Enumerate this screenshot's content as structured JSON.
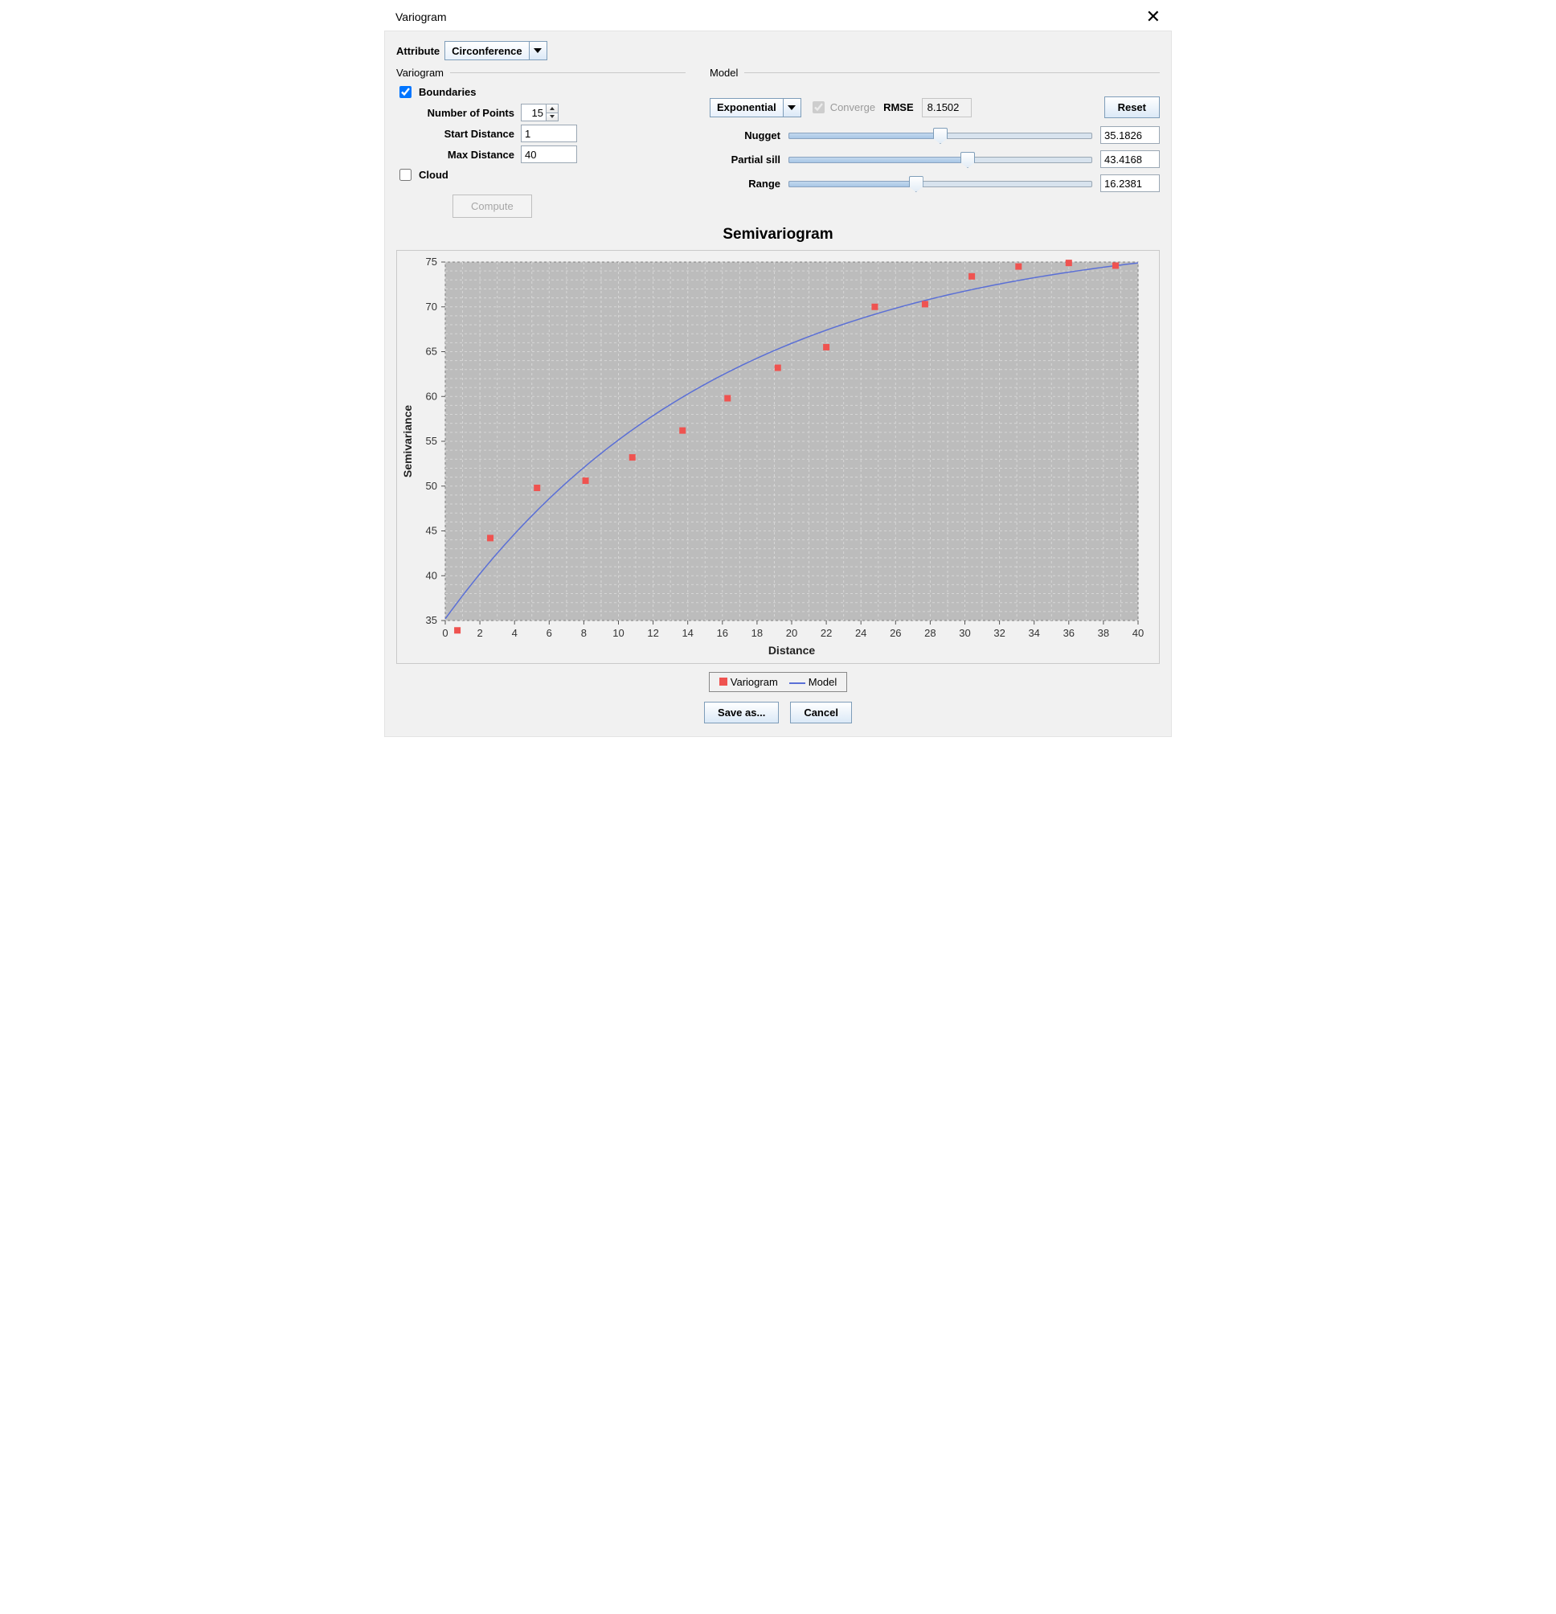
{
  "window": {
    "title": "Variogram"
  },
  "attribute": {
    "label": "Attribute",
    "value": "Circonference"
  },
  "variogram_panel": {
    "title": "Variogram",
    "boundaries": {
      "label": "Boundaries",
      "checked": true
    },
    "number_of_points": {
      "label": "Number of Points",
      "value": "15"
    },
    "start_distance": {
      "label": "Start Distance",
      "value": "1"
    },
    "max_distance": {
      "label": "Max Distance",
      "value": "40"
    },
    "cloud": {
      "label": "Cloud",
      "checked": false
    },
    "compute_label": "Compute"
  },
  "model_panel": {
    "title": "Model",
    "type": {
      "value": "Exponential"
    },
    "converge": {
      "label": "Converge",
      "checked": true
    },
    "rmse": {
      "label": "RMSE",
      "value": "8.1502"
    },
    "reset_label": "Reset",
    "nugget": {
      "label": "Nugget",
      "value": "35.1826",
      "fraction": 0.5
    },
    "partial_sill": {
      "label": "Partial sill",
      "value": "43.4168",
      "fraction": 0.59
    },
    "range": {
      "label": "Range",
      "value": "16.2381",
      "fraction": 0.42
    }
  },
  "chart": {
    "title": "Semivariogram",
    "x_label": "Distance",
    "y_label": "Semivariance",
    "x_min": 0,
    "x_max": 40,
    "x_tick_step": 2,
    "y_min": 35,
    "y_max": 75,
    "y_tick_step": 5,
    "plot_bg": "#bcbcbc",
    "grid_color": "#d6d6d6",
    "axis_color": "#808080",
    "tick_color": "#555555",
    "marker_color": "#ef5350",
    "marker_size": 8,
    "line_color": "#5a6fd6",
    "line_width": 1.5,
    "points": [
      {
        "x": 0.7,
        "y": 33.9
      },
      {
        "x": 2.6,
        "y": 44.2
      },
      {
        "x": 5.3,
        "y": 49.8
      },
      {
        "x": 8.1,
        "y": 50.6
      },
      {
        "x": 10.8,
        "y": 53.2
      },
      {
        "x": 13.7,
        "y": 56.2
      },
      {
        "x": 16.3,
        "y": 59.8
      },
      {
        "x": 19.2,
        "y": 63.2
      },
      {
        "x": 22.0,
        "y": 65.5
      },
      {
        "x": 24.8,
        "y": 70.0
      },
      {
        "x": 27.7,
        "y": 70.3
      },
      {
        "x": 30.4,
        "y": 73.4
      },
      {
        "x": 33.1,
        "y": 74.5
      },
      {
        "x": 36.0,
        "y": 74.9
      },
      {
        "x": 38.7,
        "y": 74.6
      }
    ],
    "model_curve": {
      "nugget": 35.1826,
      "partial_sill": 43.4168,
      "range": 16.2381
    },
    "legend": {
      "variogram": "Variogram",
      "model": "Model"
    }
  },
  "buttons": {
    "save_as": "Save as...",
    "cancel": "Cancel"
  },
  "colors": {
    "panel_bg": "#f1f1f1",
    "border": "#c9c9c9",
    "button_border": "#7e9db9"
  }
}
